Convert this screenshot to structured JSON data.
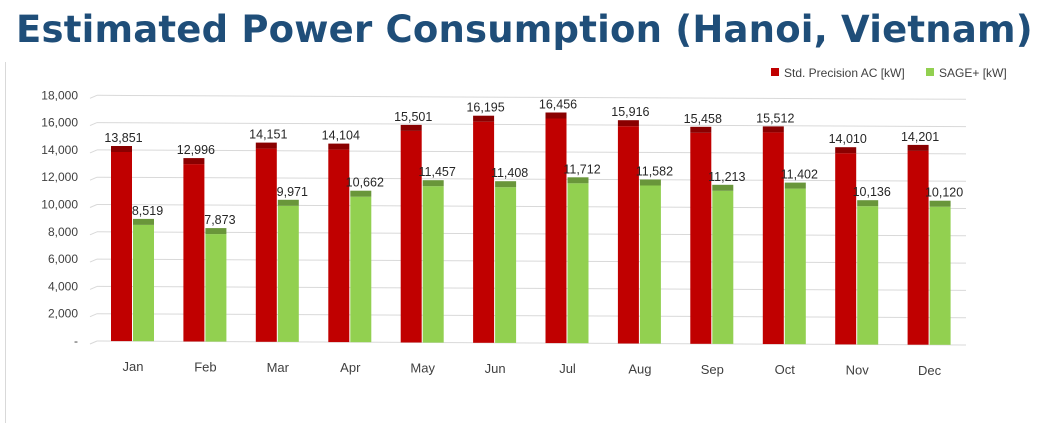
{
  "chart_data": {
    "type": "bar",
    "title": "Estimated Power Consumption (Hanoi, Vietnam)",
    "categories": [
      "Jan",
      "Feb",
      "Mar",
      "Apr",
      "May",
      "Jun",
      "Jul",
      "Aug",
      "Sep",
      "Oct",
      "Nov",
      "Dec"
    ],
    "series": [
      {
        "name": "Std. Precision AC [kW]",
        "color": "#c00000",
        "values": [
          13851,
          12996,
          14151,
          14104,
          15501,
          16195,
          16456,
          15916,
          15458,
          15512,
          14010,
          14201
        ],
        "labels": [
          "13,851",
          "12,996",
          "14,151",
          "14,104",
          "15,501",
          "16,195",
          "16,456",
          "15,916",
          "15,458",
          "15,512",
          "14,010",
          "14,201"
        ]
      },
      {
        "name": "SAGE+ [kW]",
        "color": "#92d050",
        "values": [
          8519,
          7873,
          9971,
          10662,
          11457,
          11408,
          11712,
          11582,
          11213,
          11402,
          10136,
          10120
        ],
        "labels": [
          "8,519",
          "7,873",
          "9,971",
          "10,662",
          "11,457",
          "11,408",
          "11,712",
          "11,582",
          "11,213",
          "11,402",
          "10,136",
          "10,120"
        ]
      }
    ],
    "y_ticks": [
      "-",
      "2,000",
      "4,000",
      "6,000",
      "8,000",
      "10,000",
      "12,000",
      "14,000",
      "16,000",
      "18,000"
    ],
    "ylim": [
      0,
      18000
    ],
    "grid": true,
    "legend_position": "top-right",
    "style": "3d-clustered-column"
  }
}
